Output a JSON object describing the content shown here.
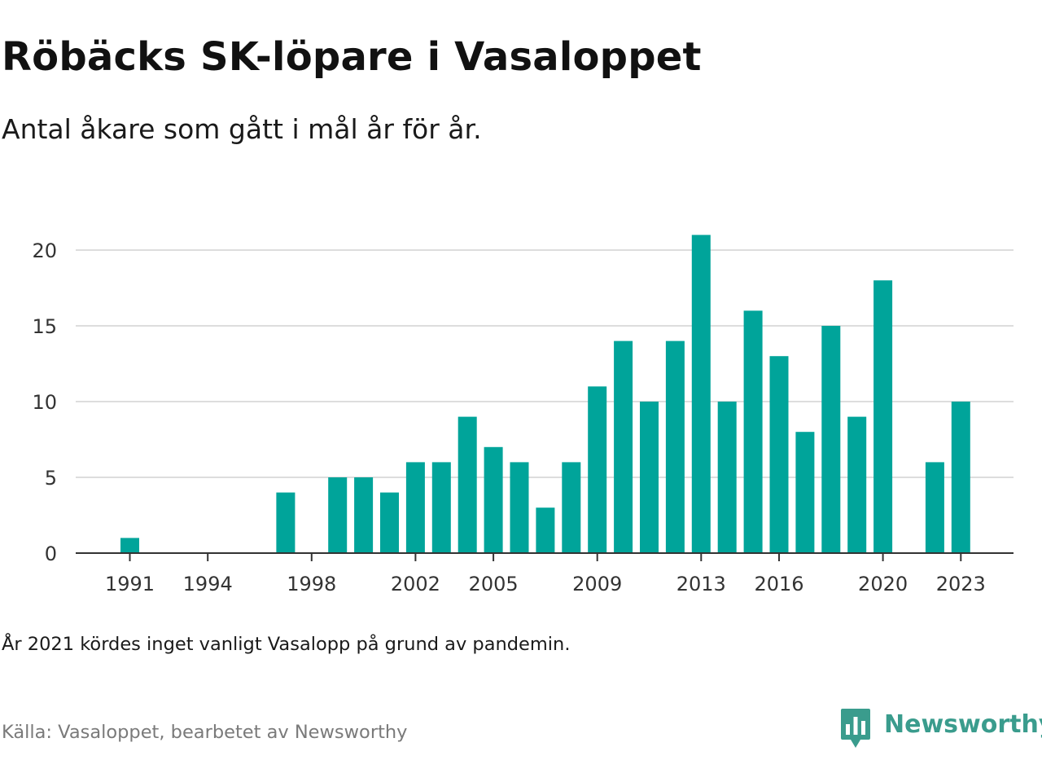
{
  "header": {
    "title": "Röbäcks SK-löpare i Vasaloppet",
    "subtitle": "Antal åkare som gått i mål år för år."
  },
  "footer": {
    "note": "År 2021 kördes inget vanligt Vasalopp på grund av pandemin.",
    "source": "Källa: Vasaloppet, bearbetet av Newsworthy",
    "brand": "Newsworthy"
  },
  "colors": {
    "bar": "#00a49a",
    "grid": "#dddddd",
    "axis": "#333333",
    "brand": "#3a9c8d"
  },
  "icons": {
    "brand_logo": "newsworthy-chart-bubble-icon"
  },
  "chart_data": {
    "type": "bar",
    "x": [
      1991,
      1992,
      1993,
      1994,
      1995,
      1996,
      1997,
      1998,
      1999,
      2000,
      2001,
      2002,
      2003,
      2004,
      2005,
      2006,
      2007,
      2008,
      2009,
      2010,
      2011,
      2012,
      2013,
      2014,
      2015,
      2016,
      2017,
      2018,
      2019,
      2020,
      2021,
      2022,
      2023
    ],
    "values": [
      1,
      0,
      0,
      0,
      0,
      0,
      4,
      0,
      5,
      5,
      4,
      6,
      6,
      9,
      7,
      6,
      3,
      6,
      11,
      14,
      10,
      14,
      21,
      10,
      16,
      13,
      8,
      15,
      9,
      18,
      0,
      6,
      10
    ],
    "xticks": [
      "1991",
      "1994",
      "1998",
      "2002",
      "2005",
      "2009",
      "2013",
      "2016",
      "2020",
      "2023"
    ],
    "yticks": [
      0,
      5,
      10,
      15,
      20
    ],
    "ylim": [
      0,
      21
    ],
    "xlabel": "",
    "ylabel": "",
    "grid": true
  }
}
